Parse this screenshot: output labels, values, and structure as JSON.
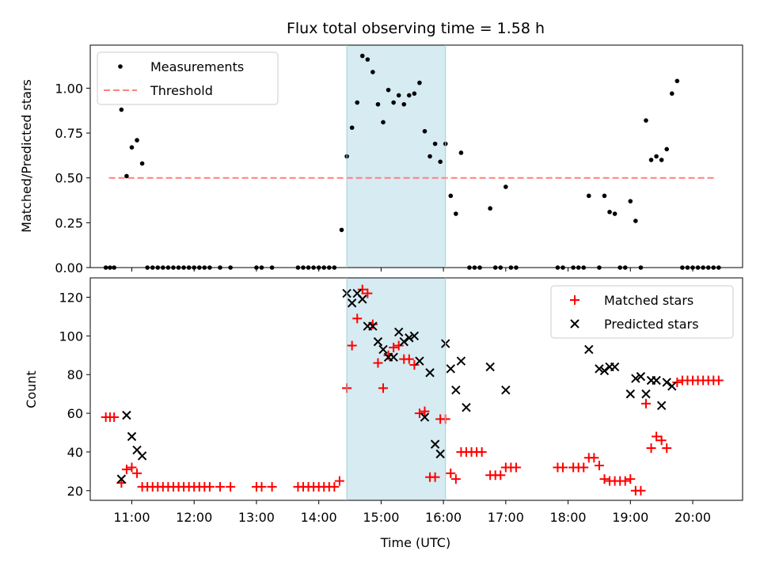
{
  "chart_data": [
    {
      "type": "scatter",
      "title": "Flux total observing time = 1.58 h",
      "ylabel": "Matched/Predicted stars",
      "xlabel": "",
      "xlim": [
        "10:20",
        "20:48"
      ],
      "ylim": [
        0,
        1.24
      ],
      "grid": false,
      "legend_position": "top-left",
      "highlight_span": [
        "14:27",
        "16:02"
      ],
      "y_ticks": [
        "0.00",
        "0.25",
        "0.50",
        "0.75",
        "1.00"
      ],
      "threshold": {
        "name": "Threshold",
        "value": 0.5,
        "x_range": [
          "10:38",
          "20:22"
        ],
        "color": "#ff7f7f"
      },
      "series": [
        {
          "name": "Measurements",
          "marker": "dot",
          "color": "#000000",
          "points": [
            [
              "10:35",
              0
            ],
            [
              "10:39",
              0
            ],
            [
              "10:43",
              0
            ],
            [
              "10:50",
              0.88
            ],
            [
              "10:55",
              0.51
            ],
            [
              "11:00",
              0.67
            ],
            [
              "11:05",
              0.71
            ],
            [
              "11:10",
              0.58
            ],
            [
              "11:15",
              0
            ],
            [
              "11:20",
              0
            ],
            [
              "11:25",
              0
            ],
            [
              "11:30",
              0
            ],
            [
              "11:35",
              0
            ],
            [
              "11:40",
              0
            ],
            [
              "11:45",
              0
            ],
            [
              "11:50",
              0
            ],
            [
              "11:55",
              0
            ],
            [
              "12:00",
              0
            ],
            [
              "12:05",
              0
            ],
            [
              "12:10",
              0
            ],
            [
              "12:15",
              0
            ],
            [
              "12:25",
              0
            ],
            [
              "12:35",
              0
            ],
            [
              "13:00",
              0
            ],
            [
              "13:05",
              0
            ],
            [
              "13:15",
              0
            ],
            [
              "13:40",
              0
            ],
            [
              "13:45",
              0
            ],
            [
              "13:50",
              0
            ],
            [
              "13:55",
              0
            ],
            [
              "14:00",
              0
            ],
            [
              "14:05",
              0
            ],
            [
              "14:10",
              0
            ],
            [
              "14:15",
              0
            ],
            [
              "14:22",
              0.21
            ],
            [
              "14:27",
              0.62
            ],
            [
              "14:32",
              0.78
            ],
            [
              "14:37",
              0.92
            ],
            [
              "14:42",
              1.18
            ],
            [
              "14:47",
              1.16
            ],
            [
              "14:52",
              1.09
            ],
            [
              "14:57",
              0.91
            ],
            [
              "15:02",
              0.81
            ],
            [
              "15:07",
              0.99
            ],
            [
              "15:12",
              0.92
            ],
            [
              "15:17",
              0.96
            ],
            [
              "15:22",
              0.91
            ],
            [
              "15:27",
              0.96
            ],
            [
              "15:32",
              0.97
            ],
            [
              "15:37",
              1.03
            ],
            [
              "15:42",
              0.76
            ],
            [
              "15:47",
              0.62
            ],
            [
              "15:52",
              0.69
            ],
            [
              "15:57",
              0.59
            ],
            [
              "16:02",
              0.69
            ],
            [
              "16:07",
              0.4
            ],
            [
              "16:12",
              0.3
            ],
            [
              "16:17",
              0.64
            ],
            [
              "16:25",
              0
            ],
            [
              "16:30",
              0
            ],
            [
              "16:35",
              0
            ],
            [
              "16:45",
              0.33
            ],
            [
              "16:50",
              0
            ],
            [
              "16:55",
              0
            ],
            [
              "17:00",
              0.45
            ],
            [
              "17:05",
              0
            ],
            [
              "17:10",
              0
            ],
            [
              "17:50",
              0
            ],
            [
              "17:55",
              0
            ],
            [
              "18:05",
              0
            ],
            [
              "18:10",
              0
            ],
            [
              "18:15",
              0
            ],
            [
              "18:20",
              0.4
            ],
            [
              "18:30",
              0
            ],
            [
              "18:35",
              0.4
            ],
            [
              "18:40",
              0.31
            ],
            [
              "18:45",
              0.3
            ],
            [
              "18:50",
              0
            ],
            [
              "18:55",
              0
            ],
            [
              "19:00",
              0.37
            ],
            [
              "19:05",
              0.26
            ],
            [
              "19:10",
              0
            ],
            [
              "19:15",
              0.82
            ],
            [
              "19:20",
              0.6
            ],
            [
              "19:25",
              0.62
            ],
            [
              "19:30",
              0.6
            ],
            [
              "19:35",
              0.66
            ],
            [
              "19:40",
              0.97
            ],
            [
              "19:45",
              1.04
            ],
            [
              "19:50",
              0
            ],
            [
              "19:55",
              0
            ],
            [
              "20:00",
              0
            ],
            [
              "20:05",
              0
            ],
            [
              "20:10",
              0
            ],
            [
              "20:15",
              0
            ],
            [
              "20:20",
              0
            ],
            [
              "20:25",
              0
            ]
          ]
        }
      ]
    },
    {
      "type": "scatter",
      "title": "",
      "ylabel": "Count",
      "xlabel": "Time (UTC)",
      "xlim": [
        "10:20",
        "20:48"
      ],
      "ylim": [
        15,
        130
      ],
      "grid": false,
      "legend_position": "top-right",
      "highlight_span": [
        "14:27",
        "16:02"
      ],
      "x_ticks": [
        "11:00",
        "12:00",
        "13:00",
        "14:00",
        "15:00",
        "16:00",
        "17:00",
        "18:00",
        "19:00",
        "20:00"
      ],
      "y_ticks": [
        "20",
        "40",
        "60",
        "80",
        "100",
        "120"
      ],
      "series": [
        {
          "name": "Matched stars",
          "marker": "plus",
          "color": "#ff0000",
          "points": [
            [
              "10:35",
              58
            ],
            [
              "10:39",
              58
            ],
            [
              "10:43",
              58
            ],
            [
              "10:50",
              24
            ],
            [
              "10:55",
              31
            ],
            [
              "11:00",
              32
            ],
            [
              "11:05",
              29
            ],
            [
              "11:10",
              22
            ],
            [
              "11:15",
              22
            ],
            [
              "11:20",
              22
            ],
            [
              "11:25",
              22
            ],
            [
              "11:30",
              22
            ],
            [
              "11:35",
              22
            ],
            [
              "11:40",
              22
            ],
            [
              "11:45",
              22
            ],
            [
              "11:50",
              22
            ],
            [
              "11:55",
              22
            ],
            [
              "12:00",
              22
            ],
            [
              "12:05",
              22
            ],
            [
              "12:10",
              22
            ],
            [
              "12:15",
              22
            ],
            [
              "12:25",
              22
            ],
            [
              "12:35",
              22
            ],
            [
              "13:00",
              22
            ],
            [
              "13:05",
              22
            ],
            [
              "13:15",
              22
            ],
            [
              "13:40",
              22
            ],
            [
              "13:45",
              22
            ],
            [
              "13:50",
              22
            ],
            [
              "13:55",
              22
            ],
            [
              "14:00",
              22
            ],
            [
              "14:05",
              22
            ],
            [
              "14:10",
              22
            ],
            [
              "14:15",
              22
            ],
            [
              "14:20",
              25
            ],
            [
              "14:27",
              73
            ],
            [
              "14:32",
              95
            ],
            [
              "14:37",
              109
            ],
            [
              "14:42",
              124
            ],
            [
              "14:47",
              122
            ],
            [
              "14:52",
              106
            ],
            [
              "14:57",
              86
            ],
            [
              "15:02",
              73
            ],
            [
              "15:07",
              90
            ],
            [
              "15:12",
              94
            ],
            [
              "15:17",
              95
            ],
            [
              "15:22",
              88
            ],
            [
              "15:27",
              88
            ],
            [
              "15:32",
              85
            ],
            [
              "15:37",
              60
            ],
            [
              "15:42",
              61
            ],
            [
              "15:47",
              27
            ],
            [
              "15:52",
              27
            ],
            [
              "15:57",
              57
            ],
            [
              "16:02",
              57
            ],
            [
              "16:07",
              29
            ],
            [
              "16:12",
              26
            ],
            [
              "16:17",
              40
            ],
            [
              "16:22",
              40
            ],
            [
              "16:27",
              40
            ],
            [
              "16:32",
              40
            ],
            [
              "16:37",
              40
            ],
            [
              "16:45",
              28
            ],
            [
              "16:50",
              28
            ],
            [
              "16:55",
              28
            ],
            [
              "17:00",
              32
            ],
            [
              "17:05",
              32
            ],
            [
              "17:10",
              32
            ],
            [
              "17:50",
              32
            ],
            [
              "17:55",
              32
            ],
            [
              "18:05",
              32
            ],
            [
              "18:10",
              32
            ],
            [
              "18:15",
              32
            ],
            [
              "18:20",
              37
            ],
            [
              "18:25",
              37
            ],
            [
              "18:30",
              33
            ],
            [
              "18:35",
              26
            ],
            [
              "18:40",
              25
            ],
            [
              "18:45",
              25
            ],
            [
              "18:50",
              25
            ],
            [
              "18:55",
              25
            ],
            [
              "19:00",
              26
            ],
            [
              "19:05",
              20
            ],
            [
              "19:10",
              20
            ],
            [
              "19:15",
              65
            ],
            [
              "19:20",
              42
            ],
            [
              "19:25",
              48
            ],
            [
              "19:30",
              46
            ],
            [
              "19:35",
              42
            ],
            [
              "19:45",
              76
            ],
            [
              "19:50",
              77
            ],
            [
              "19:55",
              77
            ],
            [
              "20:00",
              77
            ],
            [
              "20:05",
              77
            ],
            [
              "20:10",
              77
            ],
            [
              "20:15",
              77
            ],
            [
              "20:20",
              77
            ],
            [
              "20:25",
              77
            ]
          ]
        },
        {
          "name": "Predicted stars",
          "marker": "x",
          "color": "#000000",
          "points": [
            [
              "10:50",
              26
            ],
            [
              "10:55",
              59
            ],
            [
              "11:00",
              48
            ],
            [
              "11:05",
              41
            ],
            [
              "11:10",
              38
            ],
            [
              "14:27",
              122
            ],
            [
              "14:32",
              117
            ],
            [
              "14:37",
              122
            ],
            [
              "14:42",
              119
            ],
            [
              "14:47",
              105
            ],
            [
              "14:52",
              105
            ],
            [
              "14:57",
              97
            ],
            [
              "15:02",
              93
            ],
            [
              "15:07",
              89
            ],
            [
              "15:12",
              89
            ],
            [
              "15:17",
              102
            ],
            [
              "15:22",
              97
            ],
            [
              "15:27",
              99
            ],
            [
              "15:32",
              100
            ],
            [
              "15:37",
              87
            ],
            [
              "15:42",
              58
            ],
            [
              "15:47",
              81
            ],
            [
              "15:52",
              44
            ],
            [
              "15:57",
              39
            ],
            [
              "16:02",
              96
            ],
            [
              "16:07",
              83
            ],
            [
              "16:12",
              72
            ],
            [
              "16:17",
              87
            ],
            [
              "16:22",
              63
            ],
            [
              "16:45",
              84
            ],
            [
              "17:00",
              72
            ],
            [
              "18:20",
              93
            ],
            [
              "18:30",
              83
            ],
            [
              "18:35",
              82
            ],
            [
              "18:40",
              84
            ],
            [
              "18:45",
              84
            ],
            [
              "19:00",
              70
            ],
            [
              "19:05",
              78
            ],
            [
              "19:10",
              79
            ],
            [
              "19:15",
              70
            ],
            [
              "19:20",
              77
            ],
            [
              "19:25",
              77
            ],
            [
              "19:30",
              64
            ],
            [
              "19:35",
              76
            ],
            [
              "19:40",
              74
            ]
          ]
        }
      ]
    }
  ]
}
